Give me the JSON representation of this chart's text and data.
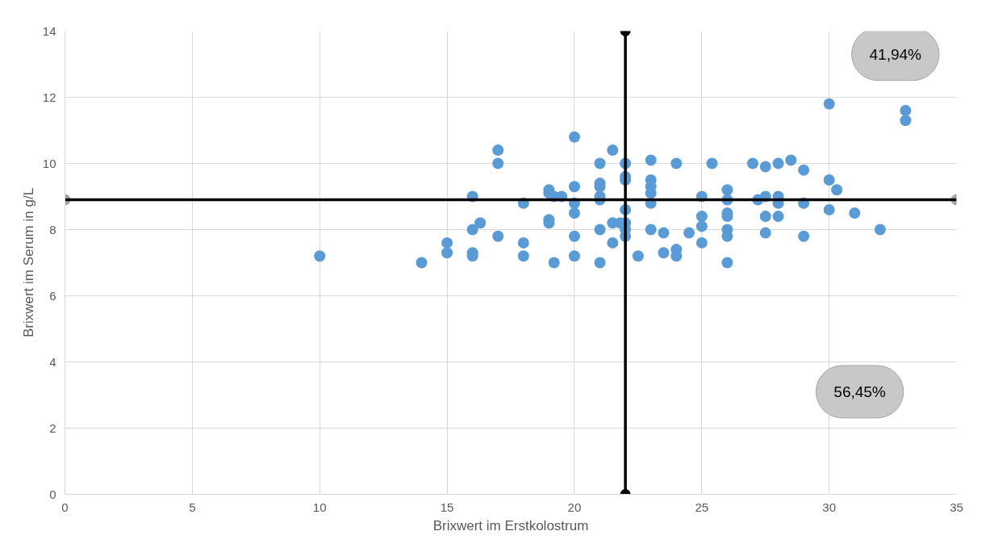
{
  "chart_data": {
    "type": "scatter",
    "xlabel": "Brixwert im Erstkolostrum",
    "ylabel": "Brixwert im Serum in g/L",
    "xlim": [
      0,
      35
    ],
    "ylim": [
      0,
      14
    ],
    "xticks": [
      0,
      5,
      10,
      15,
      20,
      25,
      30,
      35
    ],
    "yticks": [
      0,
      2,
      4,
      6,
      8,
      10,
      12,
      14
    ],
    "grid": true,
    "marker": "circle",
    "annotations": [
      "41,94%",
      "56,45%"
    ],
    "series": [
      {
        "color": "#5b9bd5",
        "x": [
          10,
          14,
          15,
          15,
          16,
          16,
          16,
          16,
          16.3,
          17,
          17,
          17,
          18,
          18,
          18,
          19,
          19,
          19,
          19,
          19.2,
          19.5,
          19.2,
          20,
          20,
          20,
          20,
          20,
          20,
          21,
          21,
          21,
          21,
          21,
          21,
          21,
          21.5,
          21.5,
          21.5,
          21.8,
          22,
          22,
          22,
          22,
          22,
          22,
          22,
          22.5,
          23,
          23,
          23,
          23,
          23,
          23,
          23.5,
          23.5,
          24,
          24,
          24,
          24.5,
          25,
          25,
          25,
          25,
          25.4,
          26,
          26,
          26,
          26,
          26,
          26,
          26,
          27,
          27.2,
          27.5,
          27.5,
          27.5,
          27.5,
          28,
          28,
          28,
          28,
          28.5,
          29,
          29,
          29,
          30,
          30,
          30,
          30.3,
          31,
          32,
          33,
          33
        ],
        "values": [
          7.2,
          7.0,
          7.6,
          7.3,
          9.0,
          8.0,
          7.3,
          7.2,
          8.2,
          10.4,
          10.0,
          7.8,
          8.8,
          7.6,
          7.2,
          9.2,
          9.1,
          8.3,
          8.2,
          7.0,
          9.0,
          9.0,
          10.8,
          9.3,
          8.8,
          8.5,
          7.8,
          7.2,
          10.0,
          9.4,
          9.3,
          9.0,
          8.9,
          8.0,
          7.0,
          10.4,
          8.2,
          7.6,
          8.2,
          10.0,
          9.6,
          9.5,
          8.6,
          8.2,
          8.0,
          7.8,
          7.2,
          10.1,
          9.5,
          9.3,
          9.1,
          8.8,
          8.0,
          7.9,
          7.3,
          10.0,
          7.4,
          7.2,
          7.9,
          9.0,
          8.4,
          8.1,
          7.6,
          10.0,
          9.2,
          8.9,
          8.5,
          8.4,
          8.0,
          7.8,
          7.0,
          10.0,
          8.9,
          9.9,
          9.0,
          8.4,
          7.9,
          10.0,
          9.0,
          8.8,
          8.4,
          10.1,
          9.8,
          8.8,
          7.8,
          11.8,
          9.5,
          8.6,
          9.2,
          8.5,
          8.0,
          11.6,
          11.3
        ]
      },
      {
        "type": "line",
        "color": "#000000",
        "marker": "circle",
        "x": [
          22,
          22
        ],
        "values": [
          0,
          14
        ]
      },
      {
        "type": "scatter",
        "color": "#a6a6a6",
        "marker": "circle",
        "x": [
          0,
          35
        ],
        "values": [
          8.9,
          8.9
        ]
      },
      {
        "type": "line",
        "color": "#000000",
        "marker": "none",
        "x": [
          0,
          35
        ],
        "values": [
          8.9,
          8.9
        ]
      }
    ]
  }
}
